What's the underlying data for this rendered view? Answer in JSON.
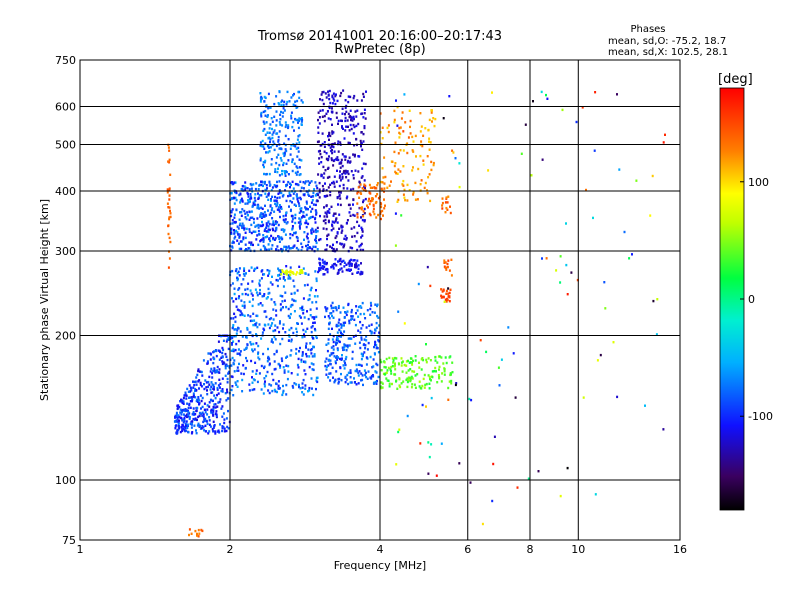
{
  "chart_data": {
    "type": "scatter",
    "title": "Tromsø 20141001 20:16:00–20:17:43",
    "subtitle": "RwPretec (8p)",
    "xlabel": "Frequency [MHz]",
    "ylabel": "Stationary phase Virtual Height [km]",
    "x_scale": "log",
    "y_scale": "log",
    "xlim": [
      1,
      16
    ],
    "ylim": [
      75,
      750
    ],
    "x_ticks": [
      1,
      2,
      4,
      6,
      8,
      10,
      16
    ],
    "y_ticks": [
      75,
      100,
      200,
      300,
      400,
      500,
      600,
      750
    ],
    "x_ticklabels": [
      "1",
      "2",
      "4",
      "6",
      "8",
      "10",
      "16"
    ],
    "y_ticklabels": [
      "75",
      "100",
      "200",
      "300",
      "400",
      "500",
      "600",
      "750"
    ],
    "grid": true,
    "stats": {
      "title": "Phases",
      "line_o": "mean, sd,O: -75.2, 18.7",
      "line_x": "mean, sd,X: 102.5, 28.1"
    },
    "colorbar": {
      "label": "[deg]",
      "range": [
        -180,
        180
      ],
      "ticks": [
        100,
        0,
        -100
      ],
      "ticklabels": [
        "100",
        "0",
        "-100"
      ]
    },
    "series": [
      {
        "x_range": [
          1.55,
          2.0
        ],
        "y_range": [
          125,
          200
        ],
        "phase": [
          -120,
          -70
        ],
        "n": 420,
        "shape": "diag"
      },
      {
        "x_range": [
          2.0,
          3.0
        ],
        "y_range": [
          150,
          280
        ],
        "phase": [
          -110,
          -55
        ],
        "n": 520,
        "shape": "box"
      },
      {
        "x_range": [
          3.1,
          4.0
        ],
        "y_range": [
          158,
          235
        ],
        "phase": [
          -105,
          -60
        ],
        "n": 300,
        "shape": "box"
      },
      {
        "x_range": [
          4.0,
          5.6
        ],
        "y_range": [
          155,
          182
        ],
        "phase": [
          20,
          60
        ],
        "n": 160,
        "shape": "box"
      },
      {
        "x_range": [
          2.0,
          3.0
        ],
        "y_range": [
          300,
          420
        ],
        "phase": [
          -115,
          -60
        ],
        "n": 560,
        "shape": "box"
      },
      {
        "x_range": [
          2.3,
          2.8
        ],
        "y_range": [
          430,
          650
        ],
        "phase": [
          -95,
          -55
        ],
        "n": 220,
        "shape": "box"
      },
      {
        "x_range": [
          3.0,
          3.75
        ],
        "y_range": [
          300,
          650
        ],
        "phase": [
          -140,
          -110
        ],
        "n": 420,
        "shape": "box"
      },
      {
        "x_range": [
          3.6,
          4.1
        ],
        "y_range": [
          350,
          420
        ],
        "phase": [
          120,
          150
        ],
        "n": 70,
        "shape": "box"
      },
      {
        "x_range": [
          4.0,
          5.2
        ],
        "y_range": [
          380,
          600
        ],
        "phase": [
          100,
          140
        ],
        "n": 120,
        "shape": "box"
      },
      {
        "x_range": [
          3.0,
          3.7
        ],
        "y_range": [
          268,
          290
        ],
        "phase": [
          -125,
          -95
        ],
        "n": 90,
        "shape": "box"
      },
      {
        "x_range": [
          2.5,
          2.8
        ],
        "y_range": [
          268,
          274
        ],
        "phase": [
          60,
          100
        ],
        "n": 30,
        "shape": "box"
      },
      {
        "x_range": [
          1.5,
          1.52
        ],
        "y_range": [
          270,
          500
        ],
        "phase": [
          130,
          150
        ],
        "n": 30,
        "shape": "box"
      },
      {
        "x_range": [
          5.3,
          5.55
        ],
        "y_range": [
          235,
          250
        ],
        "phase": [
          140,
          165
        ],
        "n": 25,
        "shape": "box"
      },
      {
        "x_range": [
          5.3,
          5.6
        ],
        "y_range": [
          265,
          290
        ],
        "phase": [
          120,
          160
        ],
        "n": 14,
        "shape": "box"
      },
      {
        "x_range": [
          5.3,
          5.55
        ],
        "y_range": [
          360,
          390
        ],
        "phase": [
          120,
          160
        ],
        "n": 14,
        "shape": "box"
      },
      {
        "x_range": [
          4.3,
          5.8
        ],
        "y_range": [
          100,
          650
        ],
        "phase": [
          -180,
          180
        ],
        "n": 40,
        "shape": "box"
      },
      {
        "x_range": [
          6.0,
          15.0
        ],
        "y_range": [
          80,
          650
        ],
        "phase": [
          -180,
          180
        ],
        "n": 70,
        "shape": "box"
      },
      {
        "x_range": [
          1.65,
          1.8
        ],
        "y_range": [
          76,
          79
        ],
        "phase": [
          120,
          150
        ],
        "n": 12,
        "shape": "box"
      }
    ]
  }
}
